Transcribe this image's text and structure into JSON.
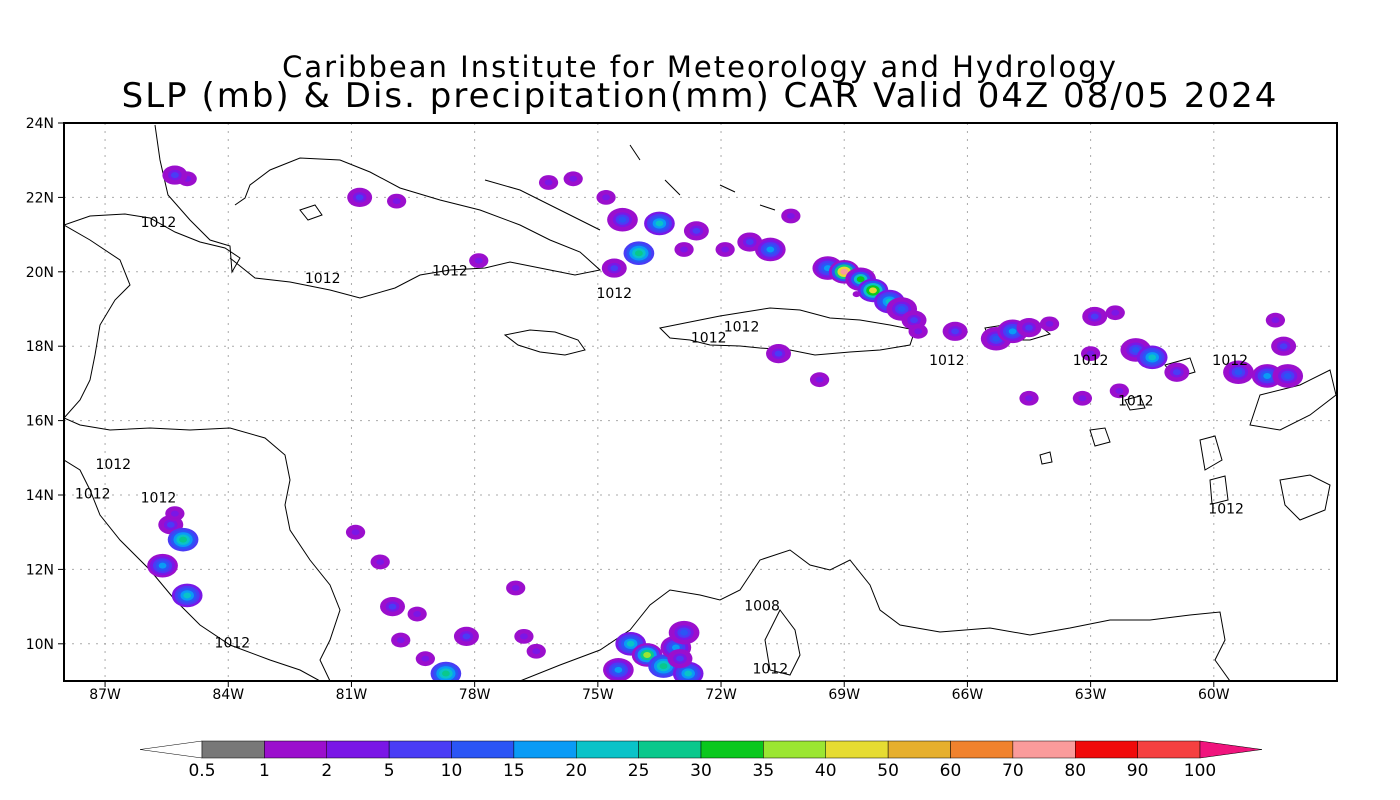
{
  "title": {
    "line1": "Caribbean Institute for Meteorology and Hydrology",
    "line2": "SLP (mb) & Dis. precipitation(mm) CAR Valid 04Z 08/05 2024"
  },
  "map": {
    "lon_range": [
      -88,
      -57
    ],
    "lat_range": [
      9,
      24
    ],
    "x_ticks": [
      {
        "lon": -87,
        "label": "87W"
      },
      {
        "lon": -84,
        "label": "84W"
      },
      {
        "lon": -81,
        "label": "81W"
      },
      {
        "lon": -78,
        "label": "78W"
      },
      {
        "lon": -75,
        "label": "75W"
      },
      {
        "lon": -72,
        "label": "72W"
      },
      {
        "lon": -69,
        "label": "69W"
      },
      {
        "lon": -66,
        "label": "66W"
      },
      {
        "lon": -63,
        "label": "63W"
      },
      {
        "lon": -60,
        "label": "60W"
      }
    ],
    "y_ticks": [
      {
        "lat": 24,
        "label": "24N"
      },
      {
        "lat": 22,
        "label": "22N"
      },
      {
        "lat": 20,
        "label": "20N"
      },
      {
        "lat": 18,
        "label": "18N"
      },
      {
        "lat": 16,
        "label": "16N"
      },
      {
        "lat": 14,
        "label": "14N"
      },
      {
        "lat": 12,
        "label": "12N"
      },
      {
        "lat": 10,
        "label": "10N"
      }
    ],
    "grid": true,
    "contour_labels": [
      {
        "text": "1012",
        "lon": -85.7,
        "lat": 21.2
      },
      {
        "text": "1012",
        "lon": -81.7,
        "lat": 19.7
      },
      {
        "text": "1012",
        "lon": -78.6,
        "lat": 19.9
      },
      {
        "text": "1012",
        "lon": -74.6,
        "lat": 19.3
      },
      {
        "text": "1012",
        "lon": -71.5,
        "lat": 18.4
      },
      {
        "text": "1012",
        "lon": -72.3,
        "lat": 18.1
      },
      {
        "text": "1012",
        "lon": -66.5,
        "lat": 17.5
      },
      {
        "text": "1012",
        "lon": -63.0,
        "lat": 17.5
      },
      {
        "text": "1012",
        "lon": -61.9,
        "lat": 16.4
      },
      {
        "text": "1012",
        "lon": -59.6,
        "lat": 17.5
      },
      {
        "text": "1012",
        "lon": -86.8,
        "lat": 14.7
      },
      {
        "text": "1012",
        "lon": -87.3,
        "lat": 13.9
      },
      {
        "text": "1012",
        "lon": -85.7,
        "lat": 13.8
      },
      {
        "text": "1012",
        "lon": -59.7,
        "lat": 13.5
      },
      {
        "text": "1012",
        "lon": -83.9,
        "lat": 9.9
      },
      {
        "text": "1008",
        "lon": -71.0,
        "lat": 10.9
      },
      {
        "text": "1012",
        "lon": -70.8,
        "lat": 9.2
      }
    ],
    "precip_cells": [
      {
        "lon": -85.0,
        "lat": 22.5,
        "level": 2
      },
      {
        "lon": -85.3,
        "lat": 22.6,
        "level": 3
      },
      {
        "lon": -80.8,
        "lat": 22.0,
        "level": 3
      },
      {
        "lon": -79.9,
        "lat": 21.9,
        "level": 2
      },
      {
        "lon": -76.2,
        "lat": 22.4,
        "level": 2
      },
      {
        "lon": -75.6,
        "lat": 22.5,
        "level": 2
      },
      {
        "lon": -74.8,
        "lat": 22.0,
        "level": 2
      },
      {
        "lon": -74.4,
        "lat": 21.4,
        "level": 4
      },
      {
        "lon": -73.5,
        "lat": 21.3,
        "level": 6
      },
      {
        "lon": -72.6,
        "lat": 21.1,
        "level": 3
      },
      {
        "lon": -72.9,
        "lat": 20.6,
        "level": 2
      },
      {
        "lon": -74.0,
        "lat": 20.5,
        "level": 7
      },
      {
        "lon": -71.9,
        "lat": 20.6,
        "level": 2
      },
      {
        "lon": -71.3,
        "lat": 20.8,
        "level": 3
      },
      {
        "lon": -70.8,
        "lat": 20.6,
        "level": 5
      },
      {
        "lon": -70.3,
        "lat": 21.5,
        "level": 2
      },
      {
        "lon": -77.9,
        "lat": 20.3,
        "level": 2
      },
      {
        "lon": -74.6,
        "lat": 20.1,
        "level": 3
      },
      {
        "lon": -69.4,
        "lat": 20.1,
        "level": 5
      },
      {
        "lon": -69.0,
        "lat": 20.0,
        "level": 13
      },
      {
        "lon": -68.6,
        "lat": 19.8,
        "level": 8
      },
      {
        "lon": -68.3,
        "lat": 19.5,
        "level": 10
      },
      {
        "lon": -67.9,
        "lat": 19.2,
        "level": 6
      },
      {
        "lon": -67.6,
        "lat": 19.0,
        "level": 4
      },
      {
        "lon": -67.3,
        "lat": 18.7,
        "level": 3
      },
      {
        "lon": -68.7,
        "lat": 19.4,
        "level": 0
      },
      {
        "lon": -66.3,
        "lat": 18.4,
        "level": 3
      },
      {
        "lon": -65.3,
        "lat": 18.2,
        "level": 4
      },
      {
        "lon": -64.9,
        "lat": 18.4,
        "level": 5
      },
      {
        "lon": -64.5,
        "lat": 18.5,
        "level": 3
      },
      {
        "lon": -64.0,
        "lat": 18.6,
        "level": 2
      },
      {
        "lon": -62.9,
        "lat": 18.8,
        "level": 3
      },
      {
        "lon": -62.4,
        "lat": 18.9,
        "level": 2
      },
      {
        "lon": -63.0,
        "lat": 17.8,
        "level": 2
      },
      {
        "lon": -61.9,
        "lat": 17.9,
        "level": 4
      },
      {
        "lon": -61.5,
        "lat": 17.7,
        "level": 6
      },
      {
        "lon": -60.9,
        "lat": 17.3,
        "level": 3
      },
      {
        "lon": -59.4,
        "lat": 17.3,
        "level": 4
      },
      {
        "lon": -58.7,
        "lat": 17.2,
        "level": 5
      },
      {
        "lon": -58.2,
        "lat": 17.2,
        "level": 4
      },
      {
        "lon": -58.3,
        "lat": 18.0,
        "level": 3
      },
      {
        "lon": -58.5,
        "lat": 18.7,
        "level": 2
      },
      {
        "lon": -69.6,
        "lat": 17.1,
        "level": 2
      },
      {
        "lon": -67.2,
        "lat": 18.4,
        "level": 2
      },
      {
        "lon": -70.6,
        "lat": 17.8,
        "level": 3
      },
      {
        "lon": -64.5,
        "lat": 16.6,
        "level": 2
      },
      {
        "lon": -63.2,
        "lat": 16.6,
        "level": 2
      },
      {
        "lon": -62.3,
        "lat": 16.8,
        "level": 2
      },
      {
        "lon": -85.4,
        "lat": 13.2,
        "level": 3
      },
      {
        "lon": -85.3,
        "lat": 13.5,
        "level": 2
      },
      {
        "lon": -85.1,
        "lat": 12.8,
        "level": 7
      },
      {
        "lon": -85.6,
        "lat": 12.1,
        "level": 5
      },
      {
        "lon": -85.0,
        "lat": 11.3,
        "level": 6
      },
      {
        "lon": -80.9,
        "lat": 13.0,
        "level": 2
      },
      {
        "lon": -80.3,
        "lat": 12.2,
        "level": 2
      },
      {
        "lon": -80.0,
        "lat": 11.0,
        "level": 3
      },
      {
        "lon": -79.4,
        "lat": 10.8,
        "level": 2
      },
      {
        "lon": -79.8,
        "lat": 10.1,
        "level": 2
      },
      {
        "lon": -78.7,
        "lat": 9.2,
        "level": 7
      },
      {
        "lon": -79.2,
        "lat": 9.6,
        "level": 2
      },
      {
        "lon": -78.2,
        "lat": 10.2,
        "level": 3
      },
      {
        "lon": -76.5,
        "lat": 9.8,
        "level": 2
      },
      {
        "lon": -74.2,
        "lat": 10.0,
        "level": 6
      },
      {
        "lon": -73.8,
        "lat": 9.7,
        "level": 9
      },
      {
        "lon": -73.4,
        "lat": 9.4,
        "level": 7
      },
      {
        "lon": -73.1,
        "lat": 9.9,
        "level": 5
      },
      {
        "lon": -72.9,
        "lat": 10.3,
        "level": 4
      },
      {
        "lon": -72.8,
        "lat": 9.2,
        "level": 6
      },
      {
        "lon": -74.5,
        "lat": 9.3,
        "level": 5
      },
      {
        "lon": -73.0,
        "lat": 9.6,
        "level": 3
      },
      {
        "lon": -77.0,
        "lat": 11.5,
        "level": 2
      },
      {
        "lon": -76.8,
        "lat": 10.2,
        "level": 2
      }
    ]
  },
  "colorbar": {
    "labels": [
      "0.5",
      "1",
      "2",
      "5",
      "10",
      "15",
      "20",
      "25",
      "30",
      "35",
      "40",
      "50",
      "60",
      "70",
      "80",
      "90",
      "100"
    ],
    "colors": [
      "#ffffff",
      "#787878",
      "#9b0fcd",
      "#7a17e6",
      "#4a3cf5",
      "#2b55f5",
      "#0a9bf5",
      "#0ac3c8",
      "#0ac88c",
      "#0ac81e",
      "#9be632",
      "#e6dc32",
      "#e6af2d",
      "#f0822d",
      "#fa9b9b",
      "#f00a0a",
      "#f54040",
      "#f0147d"
    ]
  }
}
